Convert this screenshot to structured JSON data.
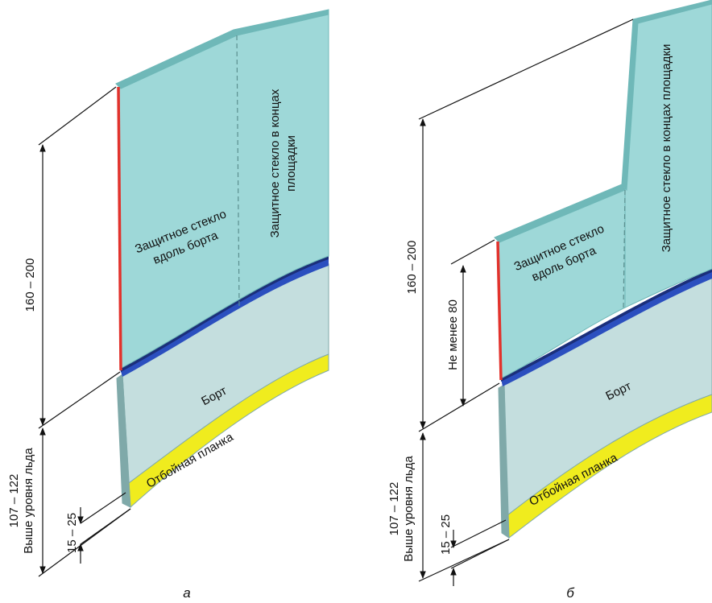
{
  "colors": {
    "glass": "#9ed8d8",
    "glass_top": "#6fb8b8",
    "board": "#c4dede",
    "board_edge": "#7fa9a9",
    "strip_blue": "#2b4fbf",
    "strip_dark": "#1b2f7a",
    "kickplate": "#f0ec1e",
    "red_edge": "#e2322c"
  },
  "panel_a": {
    "caption": "а",
    "label_glass_side": "Защитное стекло вдоль борта",
    "label_glass_side_l1": "Защитное стекло",
    "label_glass_side_l2": "вдоль борта",
    "label_glass_end_l1": "Защитное стекло в концах",
    "label_glass_end_l2": "площадки",
    "label_board": "Борт",
    "label_kickplate": "Отбойная планка",
    "dim_glass": "160 – 200",
    "dim_total_l1": "107 – 122",
    "dim_total_l2": "Выше уровня льда",
    "dim_kick": "15 – 25"
  },
  "panel_b": {
    "caption": "б",
    "label_glass_side_l1": "Защитное стекло",
    "label_glass_side_l2": "вдоль борта",
    "label_glass_end": "Защитное стекло в концах площадки",
    "label_board": "Борт",
    "label_kickplate": "Отбойная планка",
    "dim_glass": "160 – 200",
    "dim_min": "Не менее 80",
    "dim_total_l1": "107 – 122",
    "dim_total_l2": "Выше уровня льда",
    "dim_kick": "15 – 25"
  }
}
